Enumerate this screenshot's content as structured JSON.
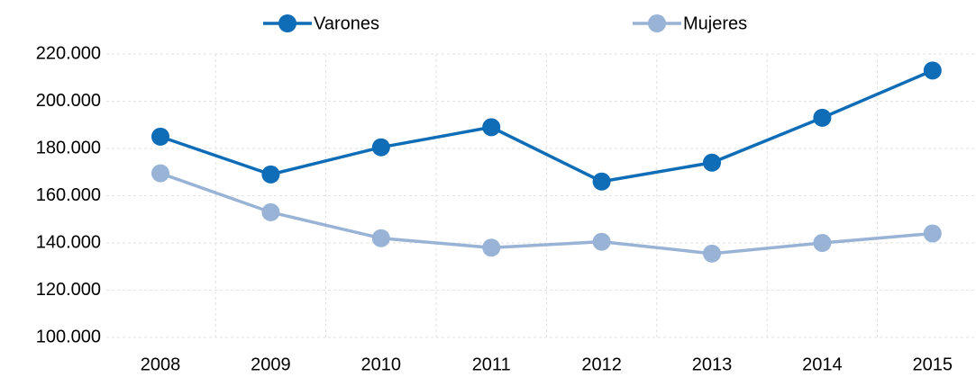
{
  "chart_data": {
    "type": "line",
    "categories": [
      "2008",
      "2009",
      "2010",
      "2011",
      "2012",
      "2013",
      "2014",
      "2015"
    ],
    "series": [
      {
        "name": "Varones",
        "color": "#0f6cb6",
        "values": [
          185000,
          169000,
          180500,
          189000,
          166000,
          174000,
          193000,
          213000
        ]
      },
      {
        "name": "Mujeres",
        "color": "#98b3d5",
        "values": [
          169500,
          153000,
          142000,
          138000,
          140500,
          135500,
          140000,
          144000
        ]
      }
    ],
    "ylim": [
      100000,
      220000
    ],
    "yticks": [
      {
        "value": 100000,
        "label": "100.000"
      },
      {
        "value": 120000,
        "label": "120.000"
      },
      {
        "value": 140000,
        "label": "140.000"
      },
      {
        "value": 160000,
        "label": "160.000"
      },
      {
        "value": 180000,
        "label": "180.000"
      },
      {
        "value": 200000,
        "label": "200.000"
      },
      {
        "value": 220000,
        "label": "220.000"
      }
    ],
    "grid": true,
    "legend": "top"
  }
}
